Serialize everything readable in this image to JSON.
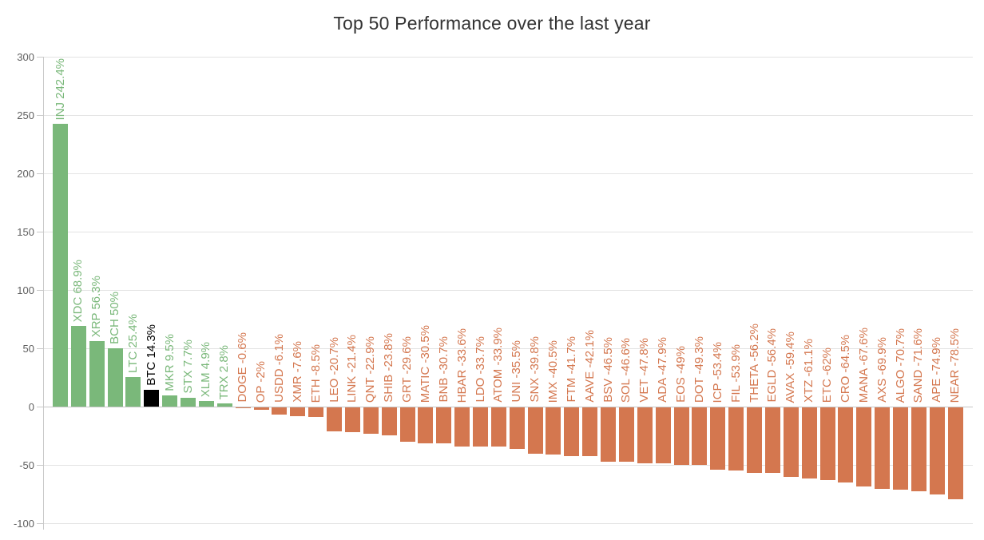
{
  "chart_data": {
    "type": "bar",
    "title": "Top 50 Performance over the last year",
    "xlabel": "",
    "ylabel": "",
    "ylim": [
      -100,
      300
    ],
    "yticks": [
      300,
      250,
      200,
      150,
      100,
      50,
      0,
      -50,
      -100
    ],
    "grid": true,
    "legend": false,
    "colors": {
      "positive": "#7ab87a",
      "negative": "#d4774f",
      "highlight": "#000000",
      "gridline": "#e3e3e3",
      "zero_line": "#c6c6c6",
      "axis_line": "#c9c9c9",
      "tick_label": "#5f5f5f",
      "title": "#333333",
      "background": "#ffffff"
    },
    "points": [
      {
        "symbol": "INJ",
        "value": 242.4,
        "label": "INJ 242.4%"
      },
      {
        "symbol": "XDC",
        "value": 68.9,
        "label": "XDC 68.9%"
      },
      {
        "symbol": "XRP",
        "value": 56.3,
        "label": "XRP 56.3%"
      },
      {
        "symbol": "BCH",
        "value": 50,
        "label": "BCH 50%"
      },
      {
        "symbol": "LTC",
        "value": 25.4,
        "label": "LTC 25.4%"
      },
      {
        "symbol": "BTC",
        "value": 14.3,
        "label": "BTC 14.3%",
        "highlight": true
      },
      {
        "symbol": "MKR",
        "value": 9.5,
        "label": "MKR 9.5%"
      },
      {
        "symbol": "STX",
        "value": 7.7,
        "label": "STX 7.7%"
      },
      {
        "symbol": "XLM",
        "value": 4.9,
        "label": "XLM 4.9%"
      },
      {
        "symbol": "TRX",
        "value": 2.8,
        "label": "TRX 2.8%"
      },
      {
        "symbol": "DOGE",
        "value": -0.6,
        "label": "DOGE -0.6%"
      },
      {
        "symbol": "OP",
        "value": -2,
        "label": "OP -2%"
      },
      {
        "symbol": "USDD",
        "value": -6.1,
        "label": "USDD -6.1%"
      },
      {
        "symbol": "XMR",
        "value": -7.6,
        "label": "XMR -7.6%"
      },
      {
        "symbol": "ETH",
        "value": -8.5,
        "label": "ETH -8.5%"
      },
      {
        "symbol": "LEO",
        "value": -20.7,
        "label": "LEO -20.7%"
      },
      {
        "symbol": "LINK",
        "value": -21.4,
        "label": "LINK -21.4%"
      },
      {
        "symbol": "QNT",
        "value": -22.9,
        "label": "QNT -22.9%"
      },
      {
        "symbol": "SHIB",
        "value": -23.8,
        "label": "SHIB -23.8%"
      },
      {
        "symbol": "GRT",
        "value": -29.6,
        "label": "GRT -29.6%"
      },
      {
        "symbol": "MATIC",
        "value": -30.5,
        "label": "MATIC -30.5%"
      },
      {
        "symbol": "BNB",
        "value": -30.7,
        "label": "BNB -30.7%"
      },
      {
        "symbol": "HBAR",
        "value": -33.6,
        "label": "HBAR -33.6%"
      },
      {
        "symbol": "LDO",
        "value": -33.7,
        "label": "LDO -33.7%"
      },
      {
        "symbol": "ATOM",
        "value": -33.9,
        "label": "ATOM -33.9%"
      },
      {
        "symbol": "UNI",
        "value": -35.5,
        "label": "UNI -35.5%"
      },
      {
        "symbol": "SNX",
        "value": -39.8,
        "label": "SNX -39.8%"
      },
      {
        "symbol": "IMX",
        "value": -40.5,
        "label": "IMX -40.5%"
      },
      {
        "symbol": "FTM",
        "value": -41.7,
        "label": "FTM -41.7%"
      },
      {
        "symbol": "AAVE",
        "value": -42.1,
        "label": "AAVE -42.1%"
      },
      {
        "symbol": "BSV",
        "value": -46.5,
        "label": "BSV -46.5%"
      },
      {
        "symbol": "SOL",
        "value": -46.6,
        "label": "SOL -46.6%"
      },
      {
        "symbol": "VET",
        "value": -47.8,
        "label": "VET -47.8%"
      },
      {
        "symbol": "ADA",
        "value": -47.9,
        "label": "ADA -47.9%"
      },
      {
        "symbol": "EOS",
        "value": -49,
        "label": "EOS -49%"
      },
      {
        "symbol": "DOT",
        "value": -49.3,
        "label": "DOT -49.3%"
      },
      {
        "symbol": "ICP",
        "value": -53.4,
        "label": "ICP -53.4%"
      },
      {
        "symbol": "FIL",
        "value": -53.9,
        "label": "FIL -53.9%"
      },
      {
        "symbol": "THETA",
        "value": -56.2,
        "label": "THETA -56.2%"
      },
      {
        "symbol": "EGLD",
        "value": -56.4,
        "label": "EGLD -56.4%"
      },
      {
        "symbol": "AVAX",
        "value": -59.4,
        "label": "AVAX -59.4%"
      },
      {
        "symbol": "XTZ",
        "value": -61.1,
        "label": "XTZ -61.1%"
      },
      {
        "symbol": "ETC",
        "value": -62,
        "label": "ETC -62%"
      },
      {
        "symbol": "CRO",
        "value": -64.5,
        "label": "CRO -64.5%"
      },
      {
        "symbol": "MANA",
        "value": -67.6,
        "label": "MANA -67.6%"
      },
      {
        "symbol": "AXS",
        "value": -69.9,
        "label": "AXS -69.9%"
      },
      {
        "symbol": "ALGO",
        "value": -70.7,
        "label": "ALGO -70.7%"
      },
      {
        "symbol": "SAND",
        "value": -71.6,
        "label": "SAND -71.6%"
      },
      {
        "symbol": "APE",
        "value": -74.9,
        "label": "APE -74.9%"
      },
      {
        "symbol": "NEAR",
        "value": -78.5,
        "label": "NEAR -78.5%"
      }
    ]
  }
}
